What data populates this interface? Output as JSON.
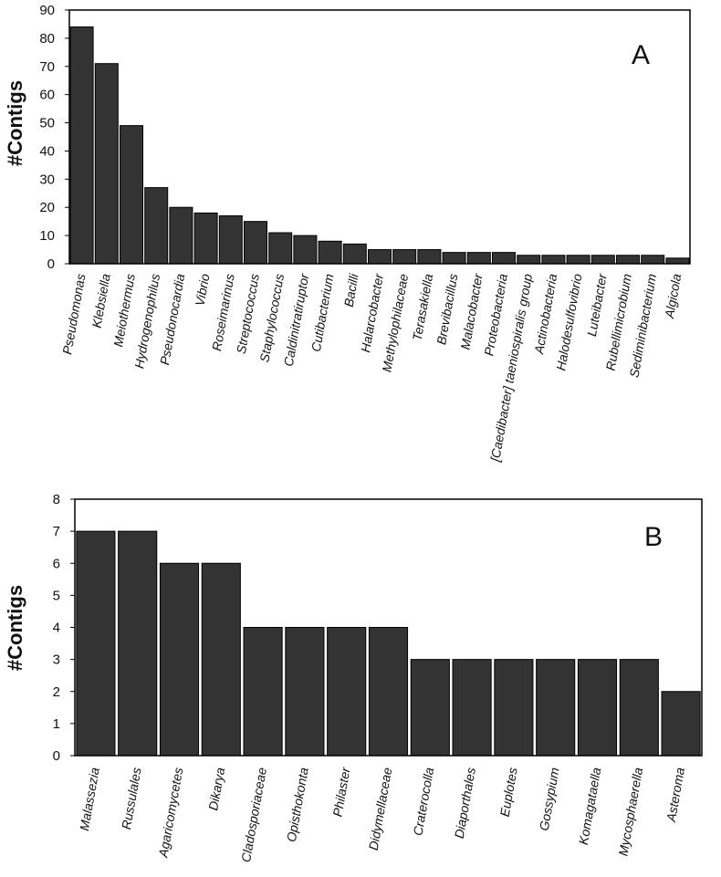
{
  "colors": {
    "bar": "#333333",
    "bar_stroke": "#000000",
    "axis": "#000000",
    "background": "#ffffff"
  },
  "chart_data": [
    {
      "type": "bar",
      "panel_label": "A",
      "title": "",
      "xlabel": "",
      "ylabel": "#Contigs",
      "ylim": [
        0,
        90
      ],
      "yticks": [
        "0",
        "10",
        "20",
        "30",
        "40",
        "50",
        "60",
        "70",
        "80",
        "90"
      ],
      "grid": false,
      "categories": [
        "Pseudomonas",
        "Klebsiella",
        "Meiothermus",
        "Hydrogenophilus",
        "Pseudonocardia",
        "Vibrio",
        "Roseimarinus",
        "Streptococcus",
        "Staphylococcus",
        "Caldinitratiruptor",
        "Cutibacterium",
        "Bacilli",
        "Halarcobacter",
        "Methylophilaceae",
        "Terasakiella",
        "Brevibacillus",
        "Malacobacter",
        "Proteobacteria",
        "[Caedibacter] taeniospiralis group",
        "Actinobacteria",
        "Halodesulfovibrio",
        "Luteibacter",
        "Rubellimicrobium",
        "Sediminibacterium",
        "Algicola"
      ],
      "values": [
        84,
        71,
        49,
        27,
        20,
        18,
        17,
        15,
        11,
        10,
        8,
        7,
        5,
        5,
        5,
        4,
        4,
        4,
        3,
        3,
        3,
        3,
        3,
        3,
        2
      ]
    },
    {
      "type": "bar",
      "panel_label": "B",
      "title": "",
      "xlabel": "",
      "ylabel": "#Contigs",
      "ylim": [
        0,
        8
      ],
      "yticks": [
        "0",
        "1",
        "2",
        "3",
        "4",
        "5",
        "6",
        "7",
        "8"
      ],
      "grid": false,
      "categories": [
        "Malassezia",
        "Russulales",
        "Agaricomycetes",
        "Dikarya",
        "Cladosporiaceae",
        "Opisthokonta",
        "Philaster",
        "Didymellaceae",
        "Craterocolla",
        "Diaporthales",
        "Euplotes",
        "Gossypium",
        "Komagataella",
        "Mycosphaerella",
        "Asteroma"
      ],
      "values": [
        7,
        7,
        6,
        6,
        4,
        4,
        4,
        4,
        3,
        3,
        3,
        3,
        3,
        3,
        2
      ]
    }
  ]
}
